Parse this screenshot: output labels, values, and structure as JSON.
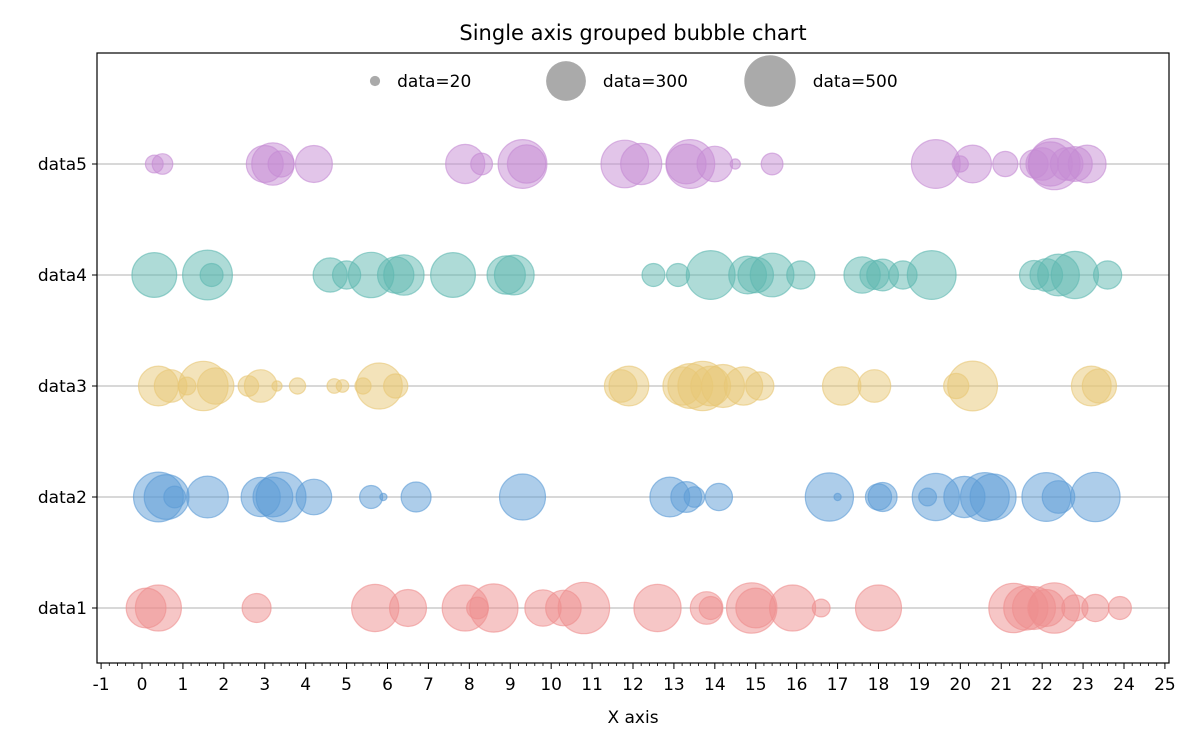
{
  "chart_data": {
    "type": "scatter",
    "title": "Single axis grouped bubble chart",
    "xlabel": "X axis",
    "ylabel": "",
    "xlim": [
      -1.1,
      25.1
    ],
    "x_ticks": [
      -1,
      0,
      1,
      2,
      3,
      4,
      5,
      6,
      7,
      8,
      9,
      10,
      11,
      12,
      13,
      14,
      15,
      16,
      17,
      18,
      19,
      20,
      21,
      22,
      23,
      24,
      25
    ],
    "x_minor_step": 0.2,
    "categories": [
      "data1",
      "data2",
      "data3",
      "data4",
      "data5"
    ],
    "grid": "horizontal-at-categories",
    "legend": {
      "placement": "top-center",
      "entries": [
        {
          "label": "data=20",
          "size": 20
        },
        {
          "label": "data=300",
          "size": 300
        },
        {
          "label": "data=500",
          "size": 500
        }
      ],
      "color": "#aaaaaa"
    },
    "series": [
      {
        "category": "data1",
        "color": "#ee8e8e",
        "points": [
          [
            0.1,
            300
          ],
          [
            0.4,
            400
          ],
          [
            2.8,
            160
          ],
          [
            5.7,
            420
          ],
          [
            6.5,
            260
          ],
          [
            7.9,
            400
          ],
          [
            8.2,
            90
          ],
          [
            8.6,
            440
          ],
          [
            9.8,
            250
          ],
          [
            10.3,
            240
          ],
          [
            10.8,
            500
          ],
          [
            12.6,
            420
          ],
          [
            13.8,
            200
          ],
          [
            13.9,
            100
          ],
          [
            14.9,
            480
          ],
          [
            15.0,
            300
          ],
          [
            15.9,
            400
          ],
          [
            16.6,
            60
          ],
          [
            18.0,
            400
          ],
          [
            21.3,
            460
          ],
          [
            21.6,
            370
          ],
          [
            21.8,
            350
          ],
          [
            22.1,
            260
          ],
          [
            22.3,
            480
          ],
          [
            22.8,
            130
          ],
          [
            23.3,
            140
          ],
          [
            23.9,
            100
          ]
        ]
      },
      {
        "category": "data2",
        "color": "#5b9bd5",
        "points": [
          [
            0.4,
            470
          ],
          [
            0.6,
            380
          ],
          [
            0.8,
            90
          ],
          [
            1.6,
            330
          ],
          [
            2.9,
            290
          ],
          [
            3.2,
            300
          ],
          [
            3.4,
            470
          ],
          [
            4.2,
            240
          ],
          [
            5.6,
            100
          ],
          [
            5.9,
            10
          ],
          [
            6.7,
            170
          ],
          [
            9.3,
            400
          ],
          [
            12.9,
            300
          ],
          [
            13.3,
            180
          ],
          [
            13.5,
            80
          ],
          [
            14.1,
            140
          ],
          [
            16.8,
            440
          ],
          [
            17.0,
            10
          ],
          [
            18.0,
            130
          ],
          [
            18.1,
            160
          ],
          [
            19.2,
            60
          ],
          [
            19.4,
            420
          ],
          [
            20.1,
            320
          ],
          [
            20.6,
            450
          ],
          [
            20.8,
            400
          ],
          [
            22.1,
            450
          ],
          [
            22.4,
            200
          ],
          [
            23.3,
            460
          ]
        ]
      },
      {
        "category": "data3",
        "color": "#e8c775",
        "points": [
          [
            0.4,
            300
          ],
          [
            0.7,
            200
          ],
          [
            1.1,
            60
          ],
          [
            1.5,
            460
          ],
          [
            1.8,
            250
          ],
          [
            2.6,
            80
          ],
          [
            2.9,
            200
          ],
          [
            3.3,
            20
          ],
          [
            3.8,
            50
          ],
          [
            4.7,
            40
          ],
          [
            4.9,
            30
          ],
          [
            5.4,
            50
          ],
          [
            5.8,
            400
          ],
          [
            6.2,
            110
          ],
          [
            11.7,
            200
          ],
          [
            11.9,
            300
          ],
          [
            13.2,
            280
          ],
          [
            13.4,
            380
          ],
          [
            13.7,
            460
          ],
          [
            13.9,
            300
          ],
          [
            14.2,
            350
          ],
          [
            14.7,
            280
          ],
          [
            15.1,
            150
          ],
          [
            17.1,
            280
          ],
          [
            17.9,
            200
          ],
          [
            19.9,
            120
          ],
          [
            20.3,
            470
          ],
          [
            23.2,
            300
          ],
          [
            23.4,
            220
          ]
        ]
      },
      {
        "category": "data4",
        "color": "#5eb8b0",
        "points": [
          [
            0.3,
            380
          ],
          [
            1.6,
            470
          ],
          [
            1.7,
            100
          ],
          [
            4.6,
            220
          ],
          [
            5.0,
            150
          ],
          [
            5.6,
            390
          ],
          [
            6.2,
            250
          ],
          [
            6.4,
            310
          ],
          [
            7.6,
            380
          ],
          [
            8.9,
            280
          ],
          [
            9.1,
            300
          ],
          [
            12.5,
            100
          ],
          [
            13.1,
            100
          ],
          [
            13.9,
            450
          ],
          [
            14.8,
            270
          ],
          [
            15.0,
            240
          ],
          [
            15.4,
            360
          ],
          [
            16.1,
            150
          ],
          [
            17.6,
            250
          ],
          [
            17.9,
            160
          ],
          [
            18.1,
            190
          ],
          [
            18.6,
            150
          ],
          [
            19.3,
            450
          ],
          [
            21.8,
            160
          ],
          [
            22.1,
            200
          ],
          [
            22.4,
            330
          ],
          [
            22.8,
            420
          ],
          [
            23.6,
            150
          ]
        ]
      },
      {
        "category": "data5",
        "color": "#c58bd4",
        "points": [
          [
            0.3,
            60
          ],
          [
            0.5,
            80
          ],
          [
            3.0,
            260
          ],
          [
            3.2,
            340
          ],
          [
            3.4,
            130
          ],
          [
            4.2,
            260
          ],
          [
            7.9,
            290
          ],
          [
            8.3,
            90
          ],
          [
            9.3,
            450
          ],
          [
            9.4,
            280
          ],
          [
            11.8,
            430
          ],
          [
            12.2,
            320
          ],
          [
            13.3,
            300
          ],
          [
            13.4,
            450
          ],
          [
            14.0,
            240
          ],
          [
            14.5,
            20
          ],
          [
            15.4,
            90
          ],
          [
            19.4,
            450
          ],
          [
            20.0,
            50
          ],
          [
            20.3,
            270
          ],
          [
            21.1,
            120
          ],
          [
            21.8,
            150
          ],
          [
            22.0,
            200
          ],
          [
            22.2,
            370
          ],
          [
            22.3,
            500
          ],
          [
            22.6,
            200
          ],
          [
            22.8,
            230
          ],
          [
            23.1,
            270
          ]
        ]
      }
    ]
  }
}
